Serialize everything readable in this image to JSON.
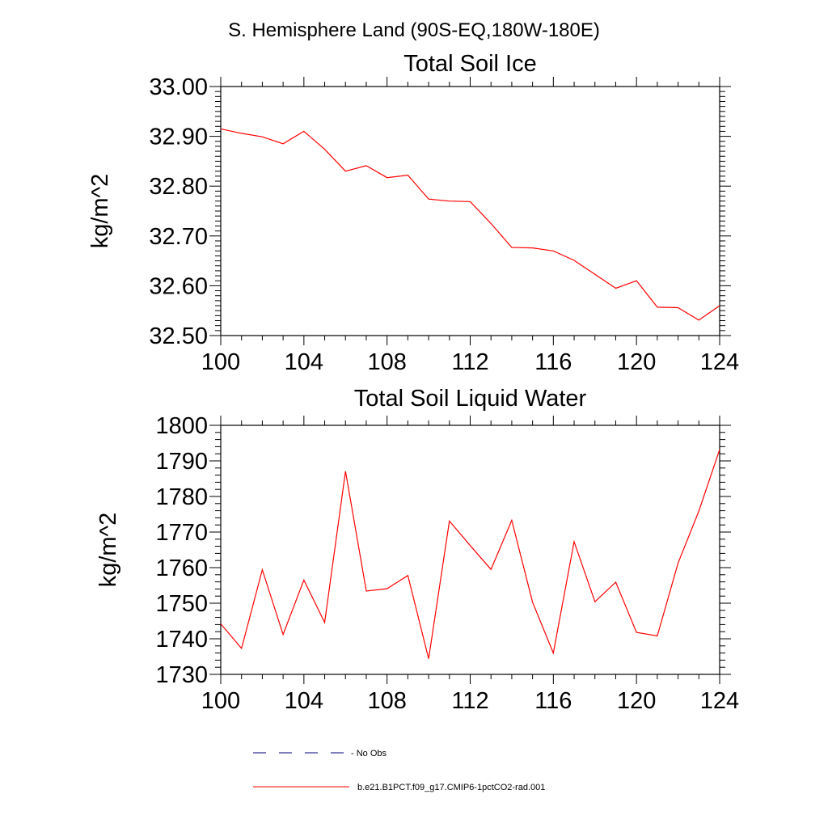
{
  "page": {
    "suptitle": "S. Hemisphere Land (90S-EQ,180W-180E)"
  },
  "chart_data": [
    {
      "type": "line",
      "title": "Total Soil Ice",
      "xlabel": "",
      "ylabel": "kg/m^2",
      "xlim": [
        100,
        124
      ],
      "ylim": [
        32.5,
        33.0
      ],
      "x_ticks": [
        "100",
        "104",
        "108",
        "112",
        "116",
        "120",
        "124"
      ],
      "y_ticks": [
        "32.50",
        "32.60",
        "32.70",
        "32.80",
        "32.90",
        "33.00"
      ],
      "x": [
        100,
        101,
        102,
        103,
        104,
        105,
        106,
        107,
        108,
        109,
        110,
        111,
        112,
        113,
        114,
        115,
        116,
        117,
        118,
        119,
        120,
        121,
        122,
        123,
        124
      ],
      "series": [
        {
          "color": "#ff0000",
          "values": [
            32.915,
            32.906,
            32.899,
            32.885,
            32.91,
            32.874,
            32.83,
            32.841,
            32.817,
            32.822,
            32.774,
            32.77,
            32.769,
            32.725,
            32.677,
            32.676,
            32.67,
            32.651,
            32.623,
            32.595,
            32.61,
            32.557,
            32.556,
            32.531,
            32.56
          ]
        }
      ]
    },
    {
      "type": "line",
      "title": "Total Soil Liquid Water",
      "xlabel": "",
      "ylabel": "kg/m^2",
      "xlim": [
        100,
        124
      ],
      "ylim": [
        1730,
        1800
      ],
      "x_ticks": [
        "100",
        "104",
        "108",
        "112",
        "116",
        "120",
        "124"
      ],
      "y_ticks": [
        "1730",
        "1740",
        "1750",
        "1760",
        "1770",
        "1780",
        "1790",
        "1800"
      ],
      "x": [
        100,
        101,
        102,
        103,
        104,
        105,
        106,
        107,
        108,
        109,
        110,
        111,
        112,
        113,
        114,
        115,
        116,
        117,
        118,
        119,
        120,
        121,
        122,
        123,
        124
      ],
      "series": [
        {
          "color": "#ff0000",
          "values": [
            1744.2,
            1737.3,
            1759.4,
            1741.2,
            1756.5,
            1744.6,
            1787.1,
            1753.4,
            1754.1,
            1757.8,
            1734.4,
            1773.1,
            1766.2,
            1759.5,
            1773.3,
            1750.3,
            1736.0,
            1767.3,
            1750.4,
            1755.9,
            1741.8,
            1740.8,
            1761.3,
            1775.9,
            1793.2
          ]
        }
      ]
    }
  ],
  "legend": {
    "placement": "bottom",
    "items": [
      {
        "label": "No Obs",
        "color": "#000080",
        "style": "dashed"
      },
      {
        "label": "b.e21.B1PCT.f09_g17.CMIP6-1pctCO2-rad.001",
        "color": "#ff0000",
        "style": "solid"
      }
    ]
  }
}
